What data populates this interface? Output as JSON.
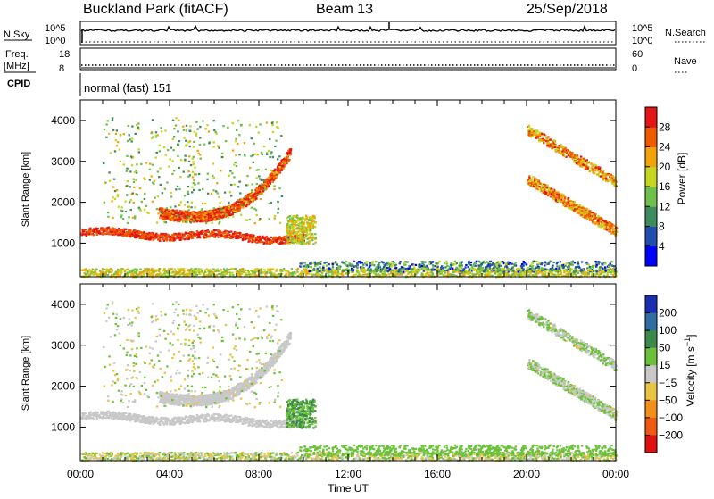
{
  "header": {
    "station": "Buckland Park (fitACF)",
    "beam": "Beam 13",
    "date": "25/Sep/2018"
  },
  "top_panels": {
    "nsky_label": "N.Sky",
    "nsky_ticks": [
      "10^5",
      "10^0"
    ],
    "nsearch_label": "N.Search",
    "nsearch_ticks": [
      "10^5",
      "10^0"
    ],
    "freq_label_1": "Freq.",
    "freq_label_2": "[MHz]",
    "freq_ticks": [
      "18",
      "8"
    ],
    "nave_label": "Nave",
    "nave_ticks": [
      "60",
      "0"
    ],
    "cpid_label": "CPID",
    "cpid_text": "normal (fast) 151"
  },
  "chart_data": [
    {
      "type": "heatmap",
      "title": "",
      "xlabel": "",
      "ylabel": "Slant Range [km]",
      "x_ticks": [
        "00:00",
        "04:00",
        "08:00",
        "12:00",
        "16:00",
        "20:00",
        "00:00"
      ],
      "x_range_hours": [
        0,
        24
      ],
      "y_ticks": [
        1000,
        2000,
        3000,
        4000
      ],
      "ylim": [
        180,
        4500
      ],
      "colorbar": {
        "label": "Power [dB]",
        "ticks": [
          4,
          8,
          12,
          16,
          20,
          24,
          28
        ],
        "range": [
          0,
          32
        ],
        "colors": [
          "#0000ff",
          "#1f4fae",
          "#3d8c5e",
          "#6fc04a",
          "#c6d51f",
          "#f2a30a",
          "#ef5a00",
          "#e31515"
        ]
      },
      "features": [
        {
          "name": "near-range ground scatter",
          "time_h": [
            0,
            24
          ],
          "range_km": [
            200,
            400
          ],
          "level": "12-24 dB"
        },
        {
          "name": "E-region band",
          "time_h": [
            0,
            10
          ],
          "range_km": [
            1100,
            1400
          ],
          "level": "24-32 dB"
        },
        {
          "name": "F-region arc",
          "time_h": [
            3.5,
            9.4
          ],
          "range_km": [
            1600,
            3300
          ],
          "level": "24-32 dB"
        },
        {
          "name": "patch near 10 UT",
          "time_h": [
            9.2,
            10.5
          ],
          "range_km": [
            1000,
            1700
          ],
          "level": "12-24 dB"
        },
        {
          "name": "evening F-region",
          "time_h": [
            20,
            24
          ],
          "range_km": [
            1200,
            3800
          ],
          "level": "20-32 dB"
        }
      ]
    },
    {
      "type": "heatmap",
      "title": "",
      "xlabel": "Time UT",
      "ylabel": "Slant Range [km]",
      "x_ticks": [
        "00:00",
        "04:00",
        "08:00",
        "12:00",
        "16:00",
        "20:00",
        "00:00"
      ],
      "x_range_hours": [
        0,
        24
      ],
      "y_ticks": [
        1000,
        2000,
        3000,
        4000
      ],
      "ylim": [
        180,
        4500
      ],
      "colorbar": {
        "label": "Velocity [m s^-1]",
        "ticks": [
          "200",
          "100",
          "50",
          "15",
          "-15",
          "-50",
          "-100",
          "-200"
        ],
        "colors": [
          "#1a2fb0",
          "#2f6ea3",
          "#3c8a4a",
          "#6cc13a",
          "#c8c8c8",
          "#e8c440",
          "#f0901a",
          "#f05a10",
          "#e01010"
        ]
      },
      "features": [
        {
          "name": "ground scatter (grey)",
          "time_h": [
            0,
            10
          ],
          "range_km": [
            1100,
            3300
          ],
          "level": "-15 to 15 m/s"
        },
        {
          "name": "near-range echoes",
          "time_h": [
            0,
            24
          ],
          "range_km": [
            200,
            400
          ],
          "level": "-50 to 50 m/s"
        },
        {
          "name": "positive velocity band",
          "time_h": [
            11.8,
            24
          ],
          "range_km": [
            300,
            600
          ],
          "level": "15 to 50 m/s"
        },
        {
          "name": "evening F-region",
          "time_h": [
            20,
            24
          ],
          "range_km": [
            1200,
            3800
          ],
          "level": "-15 to 50 m/s"
        }
      ]
    }
  ]
}
